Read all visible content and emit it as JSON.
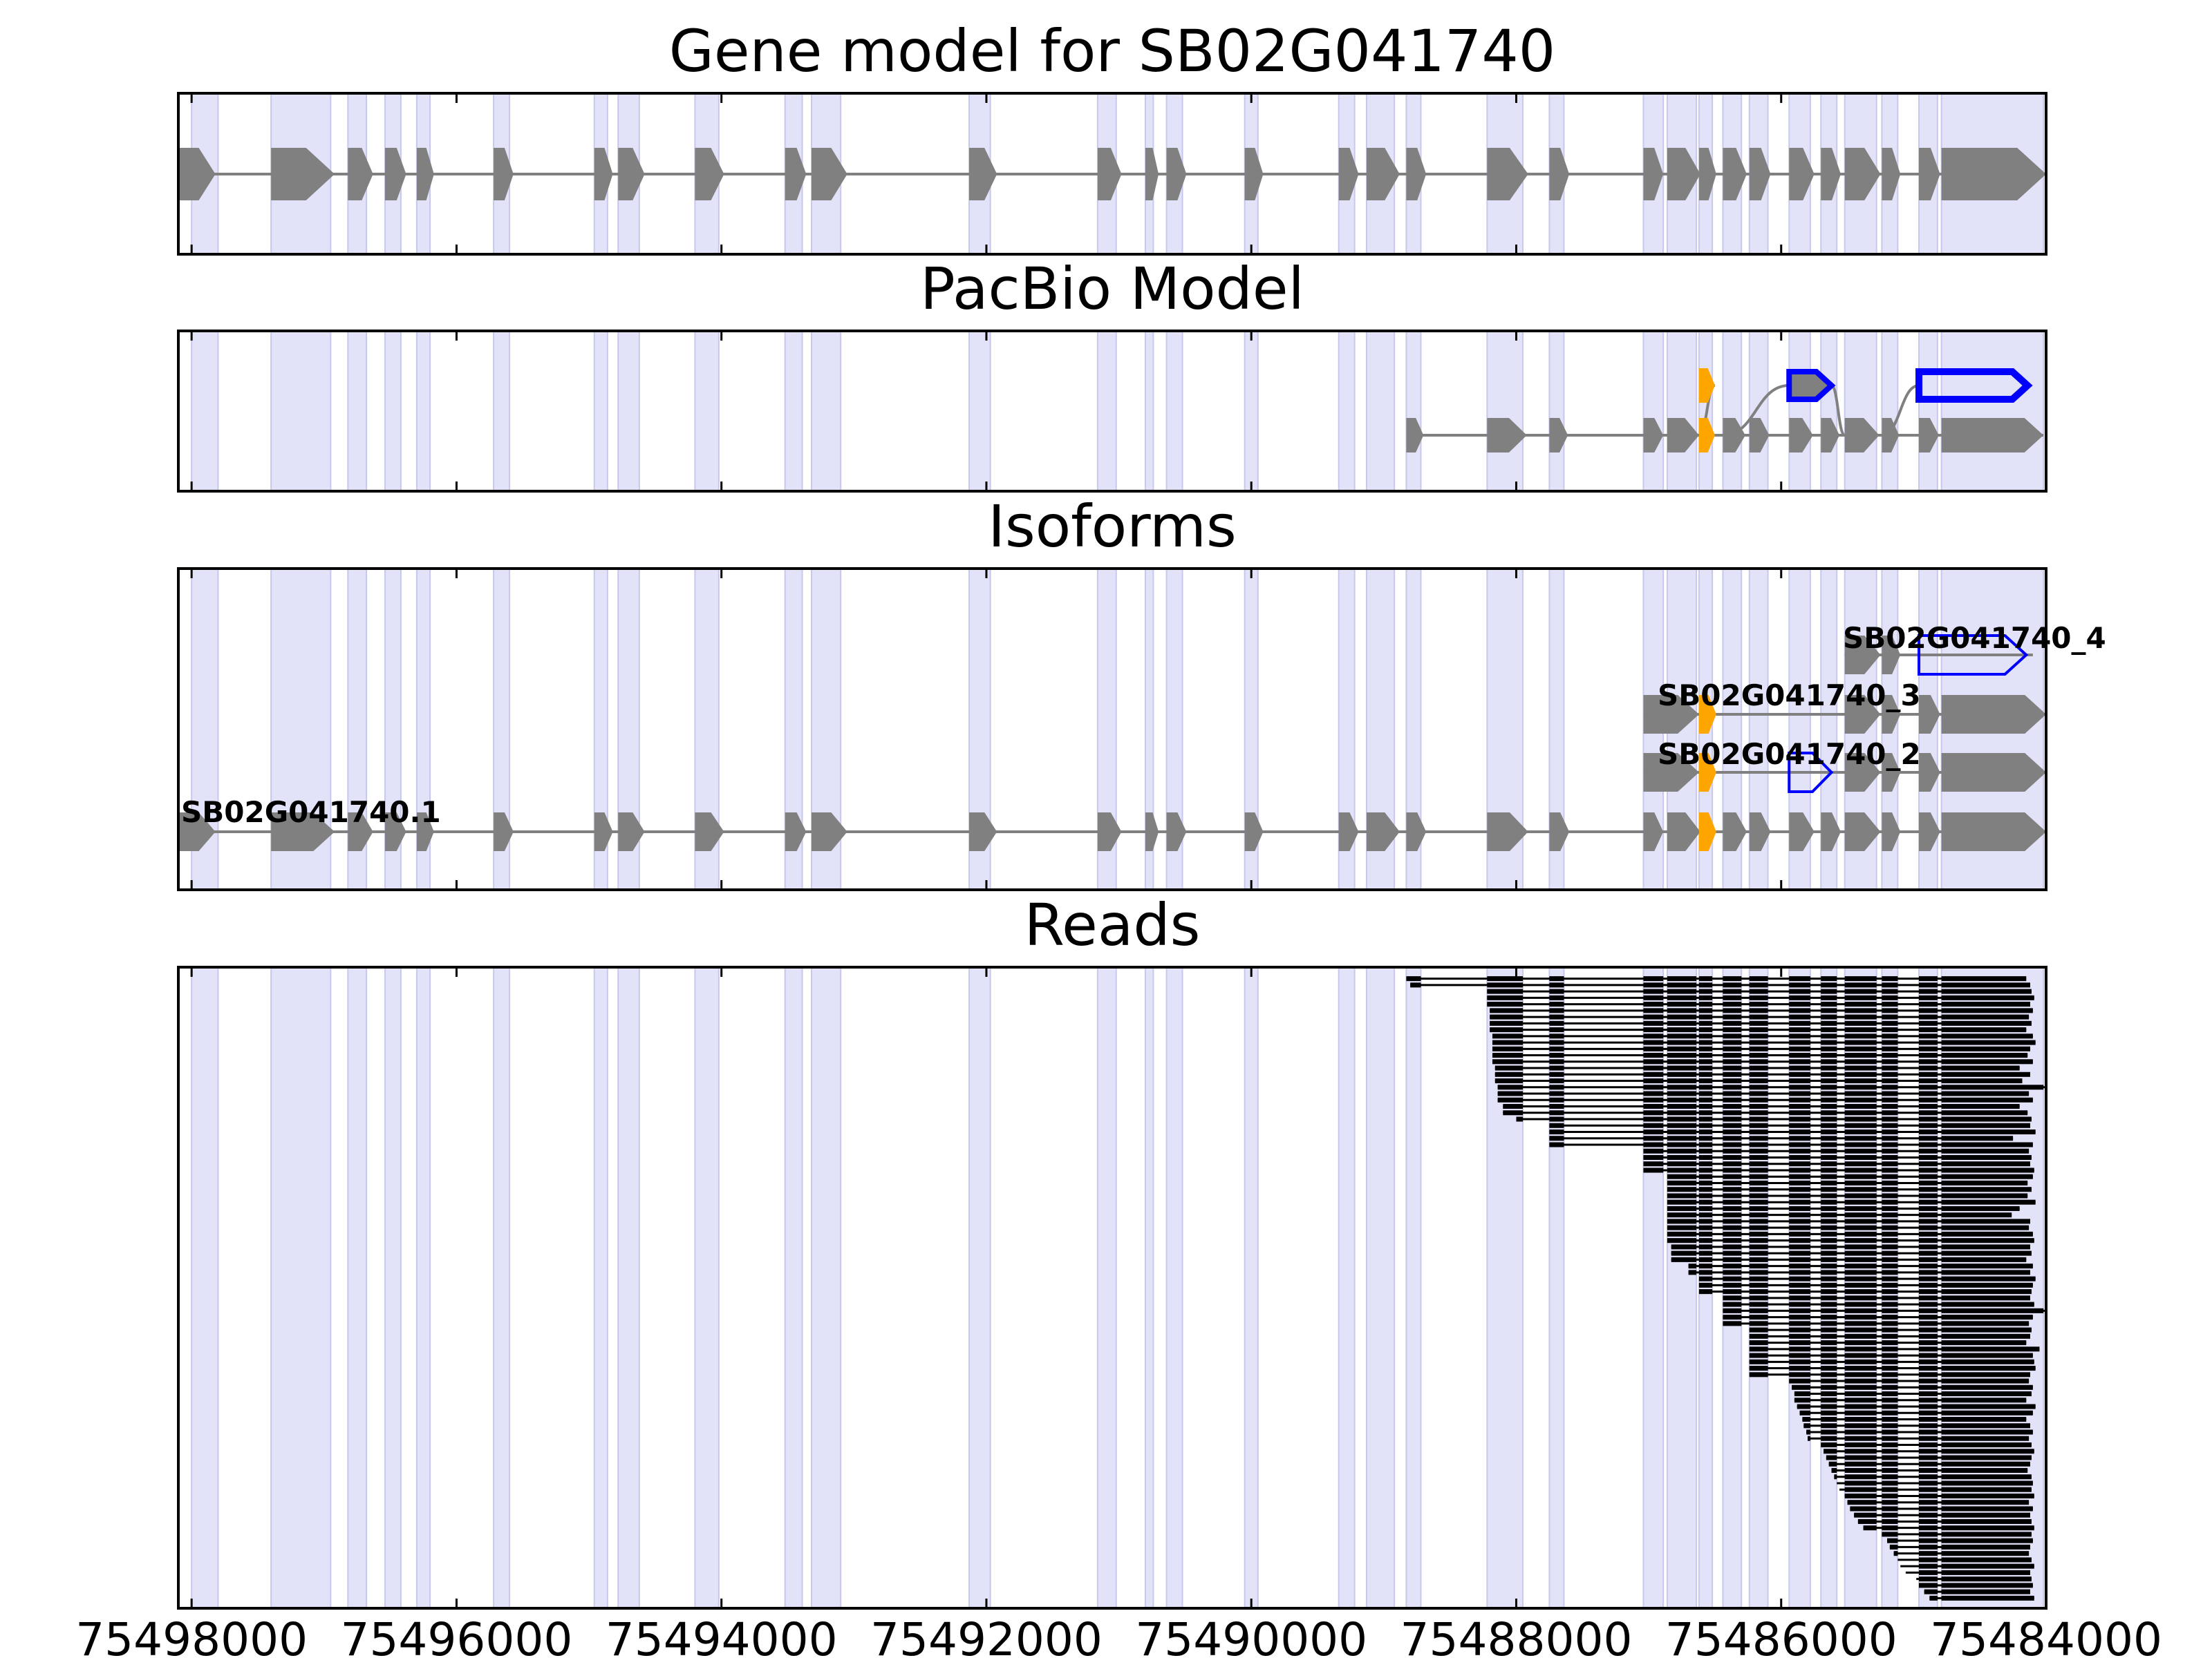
{
  "colors": {
    "exon_shade": "#e2e2f8",
    "shade_edge": "#c8c8ec",
    "gene": "#808080",
    "novel_outline": "#0000ff",
    "alt_exon": "#ffa500",
    "read": "#000000",
    "axis": "#000000"
  },
  "chart_data": {
    "type": "gene_structure",
    "xlim": [
      75498100,
      75484000
    ],
    "xticks": [
      75498000,
      75496000,
      75494000,
      75492000,
      75490000,
      75488000,
      75486000,
      75484000
    ],
    "xticklabels": [
      "75498000",
      "75496000",
      "75494000",
      "75492000",
      "75490000",
      "75488000",
      "75486000",
      "75484000"
    ],
    "shaded_regions": [
      [
        75498000,
        75497800
      ],
      [
        75497400,
        75496950
      ],
      [
        75496820,
        75496680
      ],
      [
        75496540,
        75496420
      ],
      [
        75496300,
        75496200
      ],
      [
        75495720,
        75495600
      ],
      [
        75494960,
        75494860
      ],
      [
        75494780,
        75494620
      ],
      [
        75494200,
        75494020
      ],
      [
        75493520,
        75493390
      ],
      [
        75493320,
        75493100
      ],
      [
        75492130,
        75491970
      ],
      [
        75491160,
        75491020
      ],
      [
        75490800,
        75490740
      ],
      [
        75490640,
        75490520
      ],
      [
        75490050,
        75489950
      ],
      [
        75489340,
        75489220
      ],
      [
        75489130,
        75488920
      ],
      [
        75488830,
        75488720
      ],
      [
        75488220,
        75487950
      ],
      [
        75487750,
        75487640
      ],
      [
        75487040,
        75486890
      ],
      [
        75486860,
        75486640
      ],
      [
        75486620,
        75486520
      ],
      [
        75486440,
        75486300
      ],
      [
        75486240,
        75486100
      ],
      [
        75485940,
        75485780
      ],
      [
        75485700,
        75485580
      ],
      [
        75485520,
        75485280
      ],
      [
        75485240,
        75485120
      ],
      [
        75484960,
        75484820
      ],
      [
        75484790,
        75484020
      ]
    ],
    "panels": [
      {
        "title": "Gene model for SB02G041740",
        "transcripts": [
          {
            "label": "",
            "line": [
              75498100,
              75484000
            ],
            "exons": [
              {
                "s": 75498100,
                "e": 75497820
              },
              {
                "s": 75497400,
                "e": 75496920
              },
              {
                "s": 75496820,
                "e": 75496630
              },
              {
                "s": 75496540,
                "e": 75496380
              },
              {
                "s": 75496300,
                "e": 75496170
              },
              {
                "s": 75495720,
                "e": 75495570
              },
              {
                "s": 75494960,
                "e": 75494820
              },
              {
                "s": 75494780,
                "e": 75494580
              },
              {
                "s": 75494200,
                "e": 75493980
              },
              {
                "s": 75493520,
                "e": 75493360
              },
              {
                "s": 75493320,
                "e": 75493050
              },
              {
                "s": 75492130,
                "e": 75491920
              },
              {
                "s": 75491160,
                "e": 75490980
              },
              {
                "s": 75490800,
                "e": 75490700
              },
              {
                "s": 75490640,
                "e": 75490490
              },
              {
                "s": 75490050,
                "e": 75489910
              },
              {
                "s": 75489340,
                "e": 75489190
              },
              {
                "s": 75489130,
                "e": 75488880
              },
              {
                "s": 75488830,
                "e": 75488680
              },
              {
                "s": 75488220,
                "e": 75487910
              },
              {
                "s": 75487750,
                "e": 75487600
              },
              {
                "s": 75487040,
                "e": 75486890
              },
              {
                "s": 75486860,
                "e": 75486610
              },
              {
                "s": 75486620,
                "e": 75486490
              },
              {
                "s": 75486440,
                "e": 75486260
              },
              {
                "s": 75486240,
                "e": 75486080
              },
              {
                "s": 75485940,
                "e": 75485750
              },
              {
                "s": 75485700,
                "e": 75485550
              },
              {
                "s": 75485520,
                "e": 75485250
              },
              {
                "s": 75485240,
                "e": 75485100
              },
              {
                "s": 75484960,
                "e": 75484800
              },
              {
                "s": 75484790,
                "e": 75484000
              }
            ]
          }
        ]
      },
      {
        "title": "PacBio Model",
        "main_exons": [
          {
            "s": 75488830,
            "e": 75488700
          },
          {
            "s": 75488220,
            "e": 75487920
          },
          {
            "s": 75487750,
            "e": 75487610
          },
          {
            "s": 75487040,
            "e": 75486890
          },
          {
            "s": 75486860,
            "e": 75486620
          },
          {
            "s": 75486620,
            "e": 75486500,
            "alt": true
          },
          {
            "s": 75486440,
            "e": 75486270
          },
          {
            "s": 75486240,
            "e": 75486090
          },
          {
            "s": 75485940,
            "e": 75485760
          },
          {
            "s": 75485700,
            "e": 75485560
          },
          {
            "s": 75485520,
            "e": 75485260
          },
          {
            "s": 75485240,
            "e": 75485110
          },
          {
            "s": 75484960,
            "e": 75484810
          },
          {
            "s": 75484790,
            "e": 75484020
          }
        ],
        "alt_exon": {
          "s": 75486620,
          "e": 75486500
        },
        "novel_exons": [
          {
            "s": 75485940,
            "e": 75485620
          },
          {
            "s": 75484960,
            "e": 75484140
          }
        ]
      },
      {
        "title": "Isoforms",
        "transcripts": [
          {
            "label": "SB02G041740.1",
            "line": [
              75498100,
              75484000
            ],
            "exons": [
              {
                "s": 75498100,
                "e": 75497820
              },
              {
                "s": 75497400,
                "e": 75496920
              },
              {
                "s": 75496820,
                "e": 75496630
              },
              {
                "s": 75496540,
                "e": 75496380
              },
              {
                "s": 75496300,
                "e": 75496170
              },
              {
                "s": 75495720,
                "e": 75495570
              },
              {
                "s": 75494960,
                "e": 75494820
              },
              {
                "s": 75494780,
                "e": 75494580
              },
              {
                "s": 75494200,
                "e": 75493980
              },
              {
                "s": 75493520,
                "e": 75493360
              },
              {
                "s": 75493320,
                "e": 75493050
              },
              {
                "s": 75492130,
                "e": 75491920
              },
              {
                "s": 75491160,
                "e": 75490980
              },
              {
                "s": 75490800,
                "e": 75490700
              },
              {
                "s": 75490640,
                "e": 75490490
              },
              {
                "s": 75490050,
                "e": 75489910
              },
              {
                "s": 75489340,
                "e": 75489190
              },
              {
                "s": 75489130,
                "e": 75488880
              },
              {
                "s": 75488830,
                "e": 75488680
              },
              {
                "s": 75488220,
                "e": 75487910
              },
              {
                "s": 75487750,
                "e": 75487600
              },
              {
                "s": 75487040,
                "e": 75486890
              },
              {
                "s": 75486860,
                "e": 75486610
              },
              {
                "s": 75486620,
                "e": 75486490,
                "alt": true
              },
              {
                "s": 75486440,
                "e": 75486260
              },
              {
                "s": 75486240,
                "e": 75486080
              },
              {
                "s": 75485940,
                "e": 75485750
              },
              {
                "s": 75485700,
                "e": 75485550
              },
              {
                "s": 75485520,
                "e": 75485250
              },
              {
                "s": 75485240,
                "e": 75485100
              },
              {
                "s": 75484960,
                "e": 75484800
              },
              {
                "s": 75484790,
                "e": 75484000
              }
            ]
          },
          {
            "label": "SB02G041740_2",
            "line": [
              75487040,
              75484000
            ],
            "exons": [
              {
                "s": 75487040,
                "e": 75486620
              },
              {
                "s": 75486620,
                "e": 75486490,
                "alt": true
              },
              {
                "s": 75485940,
                "e": 75485620,
                "novel": true
              },
              {
                "s": 75485520,
                "e": 75485250
              },
              {
                "s": 75485240,
                "e": 75485100
              },
              {
                "s": 75484960,
                "e": 75484800
              },
              {
                "s": 75484790,
                "e": 75484000
              }
            ]
          },
          {
            "label": "SB02G041740_3",
            "line": [
              75487040,
              75484000
            ],
            "exons": [
              {
                "s": 75487040,
                "e": 75486620
              },
              {
                "s": 75486620,
                "e": 75486490,
                "alt": true
              },
              {
                "s": 75485520,
                "e": 75485250
              },
              {
                "s": 75485240,
                "e": 75485100
              },
              {
                "s": 75484960,
                "e": 75484800
              },
              {
                "s": 75484790,
                "e": 75484000
              }
            ]
          },
          {
            "label": "SB02G041740_4",
            "line": [
              75485520,
              75484100
            ],
            "exons": [
              {
                "s": 75485520,
                "e": 75485250
              },
              {
                "s": 75485240,
                "e": 75485100
              },
              {
                "s": 75484960,
                "e": 75484150,
                "novel": true
              }
            ]
          }
        ]
      },
      {
        "title": "Reads",
        "n_reads": 98,
        "read_region_exons": [
          [
            75488830,
            75488720
          ],
          [
            75488220,
            75487950
          ],
          [
            75487750,
            75487640
          ],
          [
            75487040,
            75486890
          ],
          [
            75486860,
            75486640
          ],
          [
            75486620,
            75486520
          ],
          [
            75486440,
            75486300
          ],
          [
            75486240,
            75486100
          ],
          [
            75485940,
            75485780
          ],
          [
            75485700,
            75485580
          ],
          [
            75485520,
            75485280
          ],
          [
            75485240,
            75485120
          ],
          [
            75484960,
            75484820
          ],
          [
            75484790,
            75484020
          ]
        ],
        "read_starts_bp": [
          75488830,
          75488800,
          75488220,
          75488220,
          75488220,
          75488200,
          75488200,
          75488200,
          75488200,
          75488180,
          75488180,
          75488180,
          75488180,
          75488180,
          75488160,
          75488160,
          75488160,
          75488140,
          75488140,
          75488140,
          75488100,
          75488100,
          75488000,
          75487750,
          75487750,
          75487750,
          75487750,
          75487040,
          75487040,
          75487040,
          75487040,
          75486860,
          75486860,
          75486860,
          75486860,
          75486860,
          75486860,
          75486860,
          75486860,
          75486860,
          75486860,
          75486860,
          75486830,
          75486830,
          75486830,
          75486700,
          75486700,
          75486620,
          75486620,
          75486620,
          75486440,
          75486440,
          75486440,
          75486440,
          75486440,
          75486240,
          75486240,
          75486240,
          75486240,
          75486240,
          75486240,
          75486240,
          75486240,
          75485940,
          75485920,
          75485900,
          75485900,
          75485880,
          75485860,
          75485840,
          75485830,
          75485810,
          75485800,
          75485700,
          75485680,
          75485660,
          75485640,
          75485620,
          75485600,
          75485580,
          75485560,
          75485520,
          75485500,
          75485480,
          75485450,
          75485420,
          75485380,
          75485240,
          75485200,
          75485180,
          75485150,
          75485120,
          75485100,
          75485060,
          75484980,
          75484960,
          75484920,
          75484880
        ],
        "read_ends_bp": [
          75484150,
          75484120,
          75484110,
          75484090,
          75484120,
          75484100,
          75484130,
          75484110,
          75484150,
          75484100,
          75484080,
          75484120,
          75484140,
          75484100,
          75484200,
          75484120,
          75484180,
          75484000,
          75484130,
          75484100,
          75484200,
          75484140,
          75484110,
          75484120,
          75484080,
          75484250,
          75484100,
          75484130,
          75484110,
          75484120,
          75484090,
          75484100,
          75484140,
          75484110,
          75484140,
          75484080,
          75484200,
          75484260,
          75484120,
          75484130,
          75484100,
          75484090,
          75484120,
          75484110,
          75484150,
          75484100,
          75484120,
          75484080,
          75484100,
          75484110,
          75484120,
          75484090,
          75484010,
          75484100,
          75484130,
          75484110,
          75484120,
          75484150,
          75484050,
          75484100,
          75484090,
          75484080,
          75484120,
          75484130,
          75484100,
          75484110,
          75484150,
          75484080,
          75484100,
          75484150,
          75484120,
          75484100,
          75484130,
          75484110,
          75484090,
          75484110,
          75484120,
          75484140,
          75484110,
          75484100,
          75484110,
          75484090,
          75484130,
          75484100,
          75484120,
          75484110,
          75484090,
          75484110,
          75484100,
          75484120,
          75484130,
          75484110,
          75484090,
          75484120,
          75484110,
          75484100,
          75484120,
          75484090
        ]
      }
    ]
  }
}
